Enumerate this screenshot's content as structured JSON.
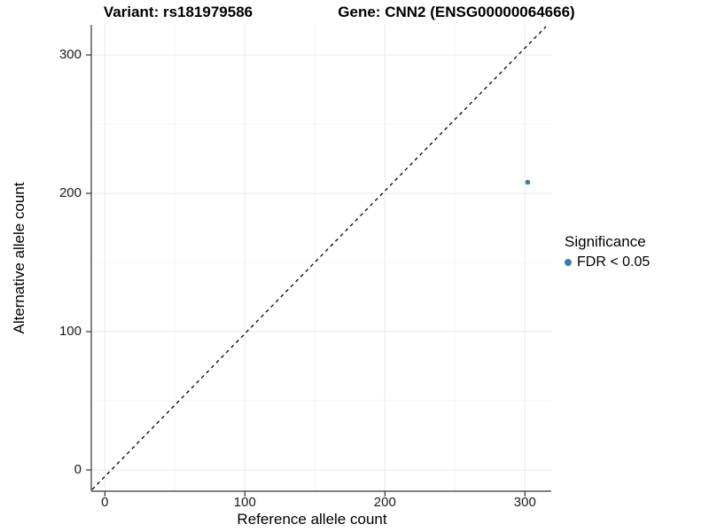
{
  "title": {
    "variant_label": "Variant: rs181979586",
    "gene_label": "Gene: CNN2 (ENSG00000064666)"
  },
  "axes": {
    "x_title": "Reference allele count",
    "y_title": "Alternative allele count"
  },
  "legend": {
    "title": "Significance",
    "items": [
      {
        "label": "FDR < 0.05",
        "color": "#4478aa",
        "marker": "circle"
      }
    ]
  },
  "colors": {
    "point": "#4478aa",
    "axis_line": "#333333",
    "grid_major": "#e9e9e9",
    "grid_minor": "#f4f4f4",
    "identity_line": "#000000",
    "background": "#ffffff"
  },
  "chart_data": {
    "type": "scatter",
    "title": "Variant: rs181979586    Gene: CNN2 (ENSG00000064666)",
    "xlabel": "Reference allele count",
    "ylabel": "Alternative allele count",
    "xlim": [
      -12,
      320
    ],
    "ylim": [
      -16,
      322
    ],
    "x_ticks": [
      0,
      100,
      200,
      300
    ],
    "x_minor_ticks": [
      50,
      150,
      250
    ],
    "y_ticks": [
      0,
      100,
      200,
      300
    ],
    "y_minor_ticks": [
      50,
      150,
      250
    ],
    "grid": "major and minor gridlines, very light gray on white panel",
    "legend_position": "right",
    "series": [
      {
        "name": "FDR < 0.05",
        "color": "#4478aa",
        "points": [
          {
            "x": 302,
            "y": 208
          }
        ]
      }
    ],
    "reference_line": {
      "type": "identity y = x",
      "style": "dashed",
      "color": "#000000"
    }
  }
}
